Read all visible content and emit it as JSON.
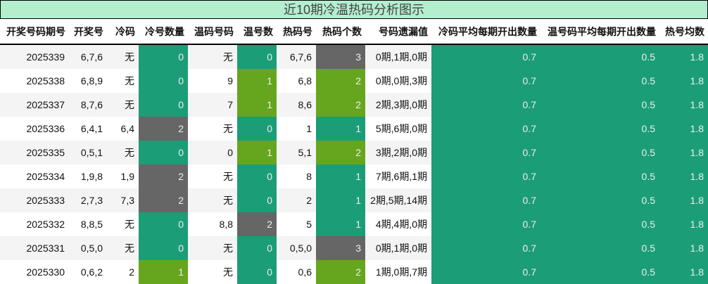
{
  "title": "近10期冷温热码分析图示",
  "colors": {
    "teal": "#1b9e77",
    "green": "#66a61e",
    "gray": "#666666",
    "title_bg": "#b3eecf"
  },
  "headers": [
    "开奖号码期号",
    "开奖号",
    "冷码",
    "冷号数量",
    "温码号码",
    "温号数",
    "热码号",
    "热码个数",
    "号码遗漏值",
    "冷码平均每期开出数量",
    "温号码平均每期开出数量",
    "热号均数"
  ],
  "rows": [
    {
      "cells": [
        "2025339",
        "6,7,6",
        "无",
        "0",
        "无",
        "0",
        "6,7,6",
        "3",
        "0期,1期,0期",
        "0.7",
        "0.5",
        "1.8"
      ],
      "fills": [
        "teal",
        "teal",
        "gray"
      ]
    },
    {
      "cells": [
        "2025338",
        "6,8,9",
        "无",
        "0",
        "9",
        "1",
        "6,8",
        "2",
        "0期,0期,3期",
        "0.7",
        "0.5",
        "1.8"
      ],
      "fills": [
        "teal",
        "green",
        "green"
      ]
    },
    {
      "cells": [
        "2025337",
        "8,7,6",
        "无",
        "0",
        "7",
        "1",
        "8,6",
        "2",
        "2期,3期,0期",
        "0.7",
        "0.5",
        "1.8"
      ],
      "fills": [
        "teal",
        "green",
        "green"
      ]
    },
    {
      "cells": [
        "2025336",
        "6,4,1",
        "6,4",
        "2",
        "无",
        "0",
        "1",
        "1",
        "5期,6期,0期",
        "0.7",
        "0.5",
        "1.8"
      ],
      "fills": [
        "gray",
        "teal",
        "teal"
      ]
    },
    {
      "cells": [
        "2025335",
        "0,5,1",
        "无",
        "0",
        "0",
        "1",
        "5,1",
        "2",
        "3期,2期,0期",
        "0.7",
        "0.5",
        "1.8"
      ],
      "fills": [
        "teal",
        "green",
        "green"
      ]
    },
    {
      "cells": [
        "2025334",
        "1,9,8",
        "1,9",
        "2",
        "无",
        "0",
        "8",
        "1",
        "7期,6期,1期",
        "0.7",
        "0.5",
        "1.8"
      ],
      "fills": [
        "gray",
        "teal",
        "teal"
      ]
    },
    {
      "cells": [
        "2025333",
        "2,7,3",
        "7,3",
        "2",
        "无",
        "0",
        "2",
        "1",
        "2期,5期,14期",
        "0.7",
        "0.5",
        "1.8"
      ],
      "fills": [
        "gray",
        "teal",
        "teal"
      ]
    },
    {
      "cells": [
        "2025332",
        "8,8,5",
        "无",
        "0",
        "8,8",
        "2",
        "5",
        "1",
        "4期,4期,0期",
        "0.7",
        "0.5",
        "1.8"
      ],
      "fills": [
        "teal",
        "gray",
        "teal"
      ]
    },
    {
      "cells": [
        "2025331",
        "0,5,0",
        "无",
        "0",
        "无",
        "0",
        "0,5,0",
        "3",
        "0期,1期,0期",
        "0.7",
        "0.5",
        "1.8"
      ],
      "fills": [
        "teal",
        "teal",
        "gray"
      ]
    },
    {
      "cells": [
        "2025330",
        "0,6,2",
        "2",
        "1",
        "无",
        "0",
        "0,6",
        "2",
        "1期,0期,7期",
        "0.7",
        "0.5",
        "1.8"
      ],
      "fills": [
        "green",
        "teal",
        "green"
      ]
    }
  ]
}
